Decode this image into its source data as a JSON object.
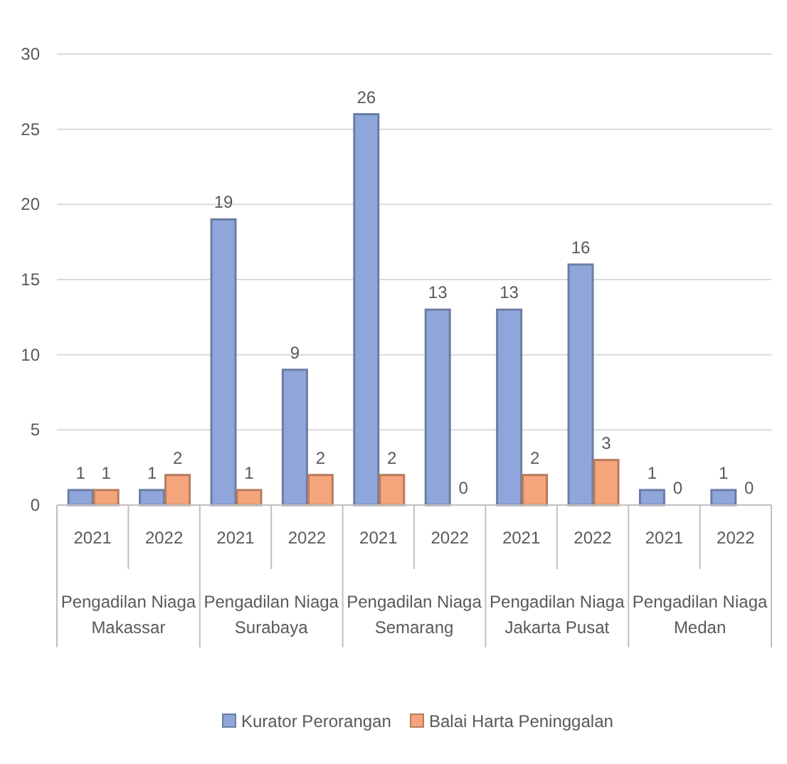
{
  "chart_data": {
    "type": "bar",
    "categories": [
      "2021",
      "2022",
      "2021",
      "2022",
      "2021",
      "2022",
      "2021",
      "2022",
      "2021",
      "2022"
    ],
    "series": [
      {
        "name": "Kurator Perorangan",
        "color": "#8fa6db",
        "values": [
          1,
          1,
          19,
          9,
          26,
          13,
          13,
          16,
          1,
          1
        ]
      },
      {
        "name": "Balai Harta Peninggalan",
        "color": "#f4a57c",
        "values": [
          1,
          2,
          1,
          2,
          2,
          0,
          2,
          3,
          0,
          0
        ]
      }
    ],
    "ylim": [
      0,
      30
    ],
    "yticks": [
      0,
      5,
      10,
      15,
      20,
      25,
      30
    ],
    "grid": "y",
    "legend": "bottom",
    "data_labels": true,
    "annotations": [
      "Pengadilan Niaga Makassar",
      "Pengadilan Niaga Surabaya",
      "Pengadilan Niaga Semarang",
      "Pengadilan Niaga Jakarta Pusat",
      "Pengadilan Niaga Medan"
    ]
  }
}
